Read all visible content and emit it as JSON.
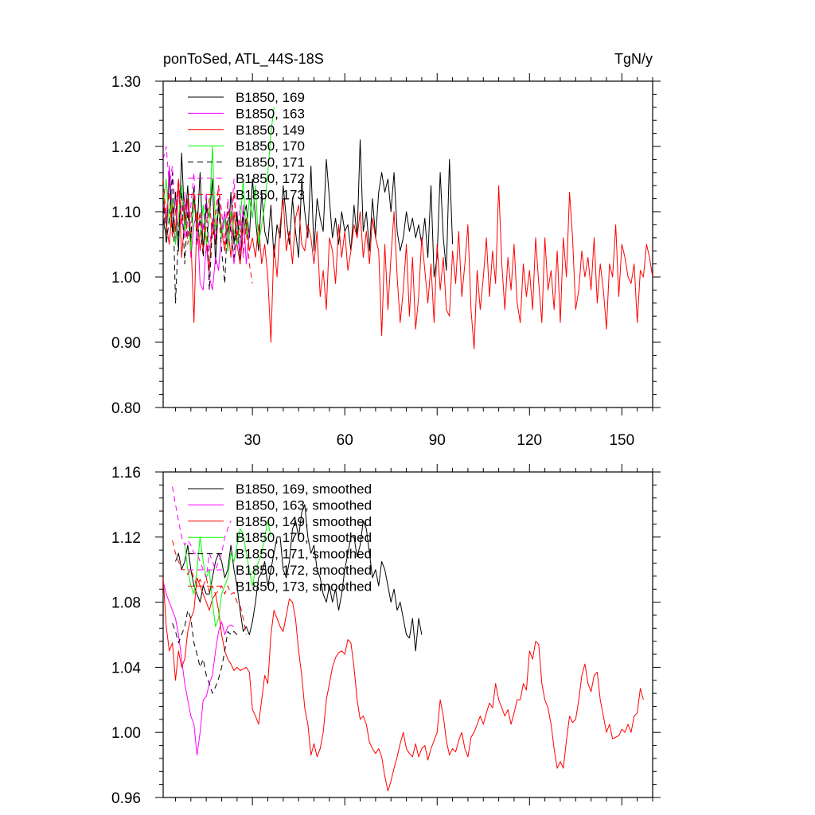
{
  "chart_data": [
    {
      "type": "line",
      "title_left": "ponToSed, ATL_44S-18S",
      "title_right": "TgN/y",
      "xlabel": "",
      "ylabel": "",
      "xlim": [
        1,
        160
      ],
      "ylim": [
        0.8,
        1.3
      ],
      "x_ticks": [
        30,
        60,
        90,
        120,
        150
      ],
      "x_tick_labels": [
        "30",
        "60",
        "90",
        "120",
        "150"
      ],
      "y_ticks": [
        0.8,
        0.9,
        1.0,
        1.1,
        1.2,
        1.3
      ],
      "y_tick_labels": [
        "0.80",
        "0.90",
        "1.00",
        "1.10",
        "1.20",
        "1.30"
      ],
      "legend_position": "top-left",
      "series": [
        {
          "name": "B1850, 169",
          "color": "#000000",
          "dash": "solid",
          "x_start": 1,
          "values": [
            1.09,
            1.06,
            1.16,
            1.07,
            1.13,
            1.04,
            1.19,
            1.08,
            1.14,
            1.05,
            1.12,
            1.07,
            1.16,
            1.04,
            1.11,
            1.09,
            1.15,
            1.02,
            1.12,
            1.07,
            1.1,
            1.04,
            1.13,
            1.05,
            1.1,
            1.02,
            1.09,
            1.11,
            1.06,
            1.15,
            1.09,
            1.04,
            1.13,
            1.07,
            1.05,
            1.11,
            1.03,
            1.08,
            1.06,
            1.14,
            1.09,
            1.05,
            1.12,
            1.07,
            1.03,
            1.15,
            1.1,
            1.06,
            1.17,
            1.04,
            1.12,
            1.09,
            1.07,
            1.18,
            1.12,
            1.06,
            1.09,
            1.05,
            1.1,
            1.07,
            1.08,
            1.04,
            1.11,
            1.06,
            1.21,
            1.07,
            1.1,
            1.04,
            1.12,
            1.06,
            1.13,
            1.16,
            1.13,
            1.15,
            1.1,
            1.16,
            1.07,
            1.04,
            1.06,
            1.1,
            1.07,
            1.09,
            1.06,
            1.08,
            1.05,
            1.09,
            1.03,
            1.14,
            1.0,
            1.03,
            1.16,
            1.06,
            1.01,
            1.18,
            1.05
          ]
        },
        {
          "name": "B1850, 163",
          "color": "#ff00ff",
          "dash": "solid",
          "x_start": 1,
          "values": [
            1.12,
            1.08,
            1.17,
            1.1,
            1.05,
            1.14,
            1.09,
            1.06,
            1.12,
            1.03,
            1.08,
            1.1,
            0.99,
            0.98,
            1.05,
            1.0,
            0.98,
            1.03,
            1.01,
            1.07,
            1.1,
            1.05,
            1.08,
            1.02,
            1.06,
            1.04,
            1.11,
            1.02,
            1.07
          ]
        },
        {
          "name": "B1850, 149",
          "color": "#ff0000",
          "dash": "solid",
          "x_start": 1,
          "values": [
            1.13,
            1.08,
            1.05,
            1.11,
            1.07,
            1.15,
            1.03,
            1.09,
            1.12,
            1.06,
            0.93,
            1.1,
            1.04,
            1.08,
            1.06,
            1.01,
            1.09,
            1.05,
            1.11,
            1.07,
            1.04,
            1.08,
            1.03,
            1.1,
            1.05,
            1.02,
            1.07,
            1.09,
            1.04,
            1.06,
            1.03,
            1.08,
            1.02,
            1.05,
            1.0,
            0.9,
            1.05,
            1.0,
            1.08,
            1.12,
            1.04,
            1.07,
            1.02,
            1.09,
            1.11,
            1.05,
            1.04,
            1.08,
            1.06,
            1.02,
            1.07,
            0.97,
            1.01,
            0.95,
            1.06,
            1.04,
            0.99,
            1.08,
            1.03,
            1.07,
            1.01,
            1.04,
            1.08,
            1.06,
            1.1,
            1.03,
            1.07,
            1.02,
            1.09,
            1.06,
            1.04,
            0.91,
            1.05,
            0.95,
            1.03,
            1.1,
            1.0,
            0.93,
            0.98,
            1.05,
            0.94,
            1.03,
            0.92,
            0.97,
            1.06,
            1.01,
            0.96,
            1.02,
            0.93,
            1.05,
            0.98,
            1.03,
            0.95,
            0.94,
            1.04,
            0.99,
            1.07,
            0.97,
            1.02,
            1.08,
            0.95,
            0.89,
            1.01,
            0.95,
            1.0,
            1.06,
            0.97,
            1.04,
            0.99,
            1.14,
            1.02,
            0.95,
            1.03,
            0.98,
            1.05,
            0.96,
            0.93,
            1.02,
            0.97,
            1.01,
            0.95,
            1.06,
            0.99,
            0.93,
            1.06,
            0.98,
            1.01,
            0.95,
            1.04,
            0.93,
            1.06,
            1.0,
            1.13,
            1.06,
            0.95,
            0.98,
            1.04,
            1.0,
            1.03,
            0.98,
            1.06,
            0.96,
            1.02,
            0.98,
            0.92,
            1.02,
            1.0,
            1.08,
            0.97,
            1.05,
            1.03,
            1.0,
            0.99,
            1.02,
            0.93,
            1.01,
            1.0,
            1.05,
            1.03,
            1.0
          ]
        },
        {
          "name": "B1850, 170",
          "color": "#00ff00",
          "dash": "solid",
          "x_start": 1,
          "values": [
            1.11,
            1.15,
            1.08,
            1.12,
            1.05,
            1.09,
            1.14,
            1.07,
            1.1,
            1.04,
            1.13,
            1.08,
            1.06,
            1.11,
            1.05,
            1.09,
            1.2,
            1.07,
            1.11,
            1.06,
            1.09,
            1.04,
            1.1,
            1.07,
            1.05,
            1.08,
            1.15,
            1.06,
            1.12,
            1.09,
            1.14,
            1.05,
            1.08,
            1.11,
            1.16,
            1.22,
            1.26
          ]
        },
        {
          "name": "B1850, 171",
          "color": "#000000",
          "dash": "dash",
          "x_start": 1,
          "values": [
            1.12,
            1.05,
            1.09,
            1.16,
            0.96,
            1.07,
            1.13,
            1.02,
            1.1,
            1.06,
            1.14,
            1.05,
            1.09,
            1.03,
            1.12,
            0.98,
            1.08,
            1.05,
            1.11,
            1.04,
            0.99,
            1.1,
            1.07,
            1.03,
            1.09,
            1.06,
            1.1,
            1.08
          ]
        },
        {
          "name": "B1850, 172",
          "color": "#ff00ff",
          "dash": "dash",
          "x_start": 1,
          "values": [
            1.18,
            1.2,
            1.14,
            1.17,
            1.1,
            1.15,
            1.08,
            1.13,
            1.06,
            1.11,
            1.16,
            1.05,
            1.1,
            1.07,
            1.13,
            1.04,
            1.09,
            1.06,
            1.14,
            1.1,
            1.05,
            1.12,
            1.08,
            1.15,
            1.06,
            1.11,
            1.03,
            1.08
          ]
        },
        {
          "name": "B1850, 173",
          "color": "#ff0000",
          "dash": "dash",
          "x_start": 1,
          "values": [
            1.15,
            1.09,
            1.13,
            1.06,
            1.1,
            1.15,
            1.08,
            1.12,
            1.05,
            1.09,
            1.13,
            1.07,
            1.1,
            1.04,
            1.08,
            1.12,
            1.06,
            1.1,
            1.14,
            1.07,
            1.05,
            1.11,
            1.08,
            1.13,
            1.06,
            1.09,
            1.04,
            1.08,
            1.02,
            0.99
          ]
        }
      ]
    },
    {
      "type": "line",
      "title_left": "",
      "title_right": "",
      "xlabel": "",
      "ylabel": "",
      "xlim": [
        1,
        160
      ],
      "ylim": [
        0.96,
        1.16
      ],
      "x_ticks": [
        30,
        60,
        90,
        120,
        150
      ],
      "x_tick_labels": [],
      "y_ticks": [
        0.96,
        1.0,
        1.04,
        1.08,
        1.12,
        1.16
      ],
      "y_tick_labels": [
        "0.96",
        "1.00",
        "1.04",
        "1.08",
        "1.12",
        "1.16"
      ],
      "legend_position": "top-left",
      "series": [
        {
          "name": "B1850, 169, smoothed",
          "color": "#000000",
          "dash": "solid",
          "x_start": 5,
          "values": [
            1.105,
            1.11,
            1.1,
            1.105,
            1.115,
            1.1,
            1.09,
            1.085,
            1.08,
            1.09,
            1.085,
            1.085,
            1.095,
            1.105,
            1.11,
            1.105,
            1.095,
            1.1,
            1.115,
            1.1,
            1.09,
            1.075,
            1.062,
            1.065,
            1.06,
            1.068,
            1.08,
            1.095,
            1.098,
            1.105,
            1.09,
            1.1,
            1.11,
            1.12,
            1.12,
            1.1,
            1.095,
            1.105,
            1.125,
            1.13,
            1.12,
            1.135,
            1.14,
            1.12,
            1.11,
            1.115,
            1.1,
            1.095,
            1.085,
            1.08,
            1.09,
            1.08,
            1.088,
            1.075,
            1.085,
            1.1,
            1.11,
            1.12,
            1.12,
            1.108,
            1.115,
            1.13,
            1.125,
            1.11,
            1.095,
            1.1,
            1.09,
            1.105,
            1.1,
            1.09,
            1.08,
            1.088,
            1.075,
            1.08,
            1.07,
            1.06,
            1.058,
            1.07,
            1.05,
            1.07,
            1.06
          ]
        },
        {
          "name": "B1850, 163, smoothed",
          "color": "#ff00ff",
          "dash": "solid",
          "x_start": 1,
          "values": [
            1.093,
            1.085,
            1.08,
            1.075,
            1.07,
            1.06,
            1.045,
            1.03,
            1.02,
            1.01,
            1.005,
            0.986,
            1.0,
            1.02,
            1.022,
            1.03,
            1.035,
            1.05,
            1.062,
            1.068,
            1.06,
            1.065,
            1.066,
            1.065
          ]
        },
        {
          "name": "B1850, 149, smoothed",
          "color": "#ff0000",
          "dash": "solid",
          "x_start": 1,
          "values": [
            1.095,
            1.065,
            1.05,
            1.055,
            1.032,
            1.05,
            1.04,
            1.045,
            1.062,
            1.07,
            1.075,
            1.095,
            1.09,
            1.085,
            1.08,
            1.075,
            1.082,
            1.085,
            1.075,
            1.06,
            1.05,
            1.045,
            1.042,
            1.038,
            1.04,
            1.038,
            1.039,
            1.04,
            1.037,
            1.014,
            1.01,
            1.005,
            1.02,
            1.035,
            1.03,
            1.06,
            1.075,
            1.07,
            1.065,
            1.062,
            1.072,
            1.082,
            1.08,
            1.07,
            1.05,
            1.035,
            1.015,
            1.005,
            0.986,
            0.993,
            0.985,
            0.99,
            1.0,
            1.02,
            1.03,
            1.04,
            1.046,
            1.049,
            1.05,
            1.048,
            1.057,
            1.055,
            1.04,
            1.02,
            1.008,
            1.01,
            1.005,
            0.994,
            0.99,
            0.987,
            0.99,
            0.985,
            0.973,
            0.964,
            0.97,
            0.978,
            0.985,
            0.993,
            1.0,
            0.99,
            0.987,
            0.985,
            0.993,
            0.985,
            0.99,
            0.992,
            0.983,
            0.99,
            0.995,
            1.0,
            1.02,
            1.01,
            0.995,
            0.986,
            0.99,
            0.988,
            0.995,
            1.0,
            0.99,
            0.985,
            0.997,
            1.0,
            1.005,
            1.01,
            1.005,
            1.012,
            1.018,
            1.015,
            1.03,
            1.02,
            1.015,
            1.01,
            1.014,
            1.005,
            1.012,
            1.02,
            1.02,
            1.03,
            1.026,
            1.05,
            1.045,
            1.056,
            1.054,
            1.03,
            1.02,
            1.015,
            1.005,
            0.99,
            0.978,
            0.982,
            0.978,
            0.995,
            1.01,
            1.006,
            1.008,
            1.02,
            1.035,
            1.042,
            1.03,
            1.025,
            1.035,
            1.037,
            1.02,
            1.01,
            1.0,
            1.005,
            0.996,
            0.997,
            0.998,
            1.002,
            1.0,
            1.005,
            1.0,
            1.01,
            1.012,
            1.027,
            1.02
          ]
        },
        {
          "name": "B1850, 170, smoothed",
          "color": "#00ff00",
          "dash": "solid",
          "x_start": 8,
          "values": [
            1.115,
            1.1,
            1.09,
            1.085,
            1.1,
            1.12,
            1.105,
            1.095,
            1.1,
            1.08,
            1.065,
            1.07,
            1.085,
            1.09,
            1.095,
            1.11,
            1.105,
            1.115,
            1.125,
            1.122,
            1.11,
            1.1,
            1.09,
            1.1,
            1.105,
            1.11,
            1.12,
            1.13,
            1.12
          ]
        },
        {
          "name": "B1850, 171, smoothed",
          "color": "#000000",
          "dash": "dash",
          "x_start": 4,
          "values": [
            1.067,
            1.062,
            1.055,
            1.06,
            1.065,
            1.075,
            1.07,
            1.055,
            1.048,
            1.04,
            1.045,
            1.035,
            1.03,
            1.024,
            1.028,
            1.033,
            1.04,
            1.05,
            1.062,
            1.06,
            1.062,
            1.06
          ]
        },
        {
          "name": "B1850, 172, smoothed",
          "color": "#ff00ff",
          "dash": "dash",
          "x_start": 4,
          "values": [
            1.151,
            1.14,
            1.13,
            1.12,
            1.115,
            1.118,
            1.115,
            1.11,
            1.11,
            1.105,
            1.1,
            1.095,
            1.11,
            1.105,
            1.1,
            1.105,
            1.11,
            1.12,
            1.125,
            1.13
          ]
        },
        {
          "name": "B1850, 173, smoothed",
          "color": "#ff0000",
          "dash": "dash",
          "x_start": 4,
          "values": [
            1.118,
            1.11,
            1.105,
            1.1,
            1.1,
            1.097,
            1.1,
            1.095,
            1.09,
            1.094,
            1.09,
            1.095,
            1.086,
            1.09,
            1.085,
            1.087,
            1.09,
            1.085,
            1.09,
            1.085,
            1.086,
            1.08,
            1.078,
            1.07,
            1.06
          ]
        }
      ]
    }
  ]
}
